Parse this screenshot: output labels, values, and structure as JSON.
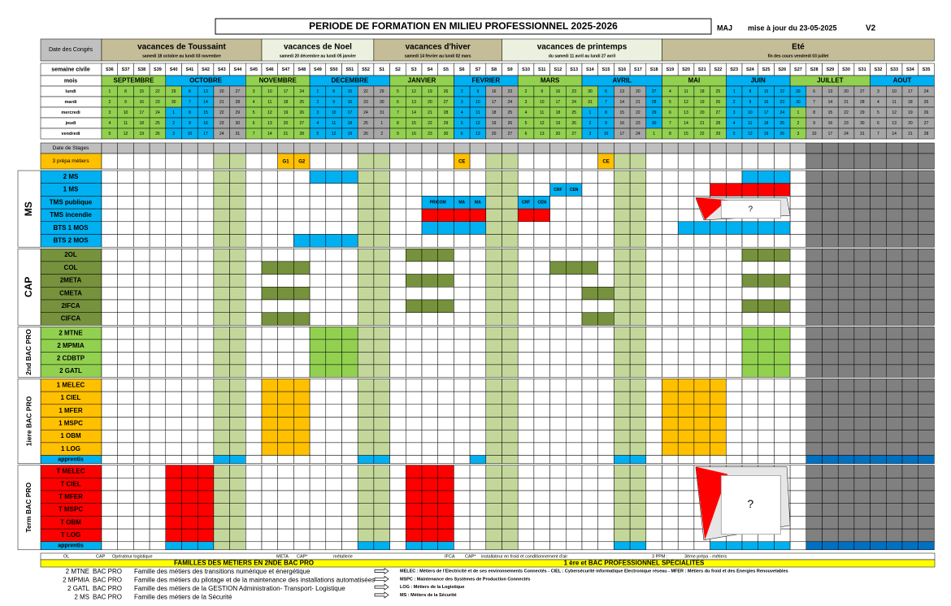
{
  "header": {
    "title": "PERIODE DE FORMATION EN MILIEU PROFESSIONNEL   2025-2026",
    "maj": "MAJ",
    "update": "mise à jour du 23-05-2025",
    "version": "V2"
  },
  "calendar": {
    "conges_label": "Date des Congés",
    "conges": [
      {
        "name": "vacances de Toussaint",
        "dates": "samedi 18 octobre au lundi 03 novembre"
      },
      {
        "name": "vacances de Noel",
        "dates": "samedi 20 décembre au lundi 05 janvier"
      },
      {
        "name": "vacances d'hiver",
        "dates": "samedi 14 février au lundi 02 mars"
      },
      {
        "name": "vacances de printemps",
        "dates": "du samedi 11 avril au lundi 27 avril"
      },
      {
        "name": "Eté",
        "dates": "fin des cours vendredi 03 juillet"
      }
    ],
    "weeks_label": "semaine civile",
    "weeks": [
      "S36",
      "S37",
      "S38",
      "S39",
      "S40",
      "S41",
      "S42",
      "S43",
      "S44",
      "S45",
      "S46",
      "S47",
      "S48",
      "S49",
      "S50",
      "S51",
      "S52",
      "S1",
      "S2",
      "S3",
      "S4",
      "S5",
      "S6",
      "S7",
      "S8",
      "S9",
      "S10",
      "S11",
      "S12",
      "S13",
      "S14",
      "S15",
      "S16",
      "S17",
      "S18",
      "S19",
      "S20",
      "S21",
      "S22",
      "S23",
      "S24",
      "S25",
      "S26",
      "S27",
      "S28",
      "S29",
      "S30",
      "S31",
      "S32",
      "S33",
      "S34",
      "S35"
    ],
    "months_label": "mois",
    "months": [
      "SEPTEMBRE",
      "OCTOBRE",
      "NOVEMBRE",
      "DECEMBRE",
      "JANVIER",
      "FEVRIER",
      "MARS",
      "AVRIL",
      "MAI",
      "JUIN",
      "JUILLET",
      "AOUT"
    ],
    "days": [
      {
        "name": "lundi",
        "dates": [
          1,
          8,
          15,
          22,
          29,
          6,
          13,
          20,
          27,
          3,
          10,
          17,
          24,
          1,
          8,
          15,
          22,
          29,
          5,
          12,
          19,
          26,
          2,
          9,
          16,
          23,
          2,
          9,
          16,
          23,
          30,
          6,
          13,
          20,
          27,
          4,
          11,
          18,
          25,
          1,
          8,
          15,
          22,
          29,
          6,
          13,
          20,
          27,
          3,
          10,
          17,
          24
        ]
      },
      {
        "name": "mardi",
        "dates": [
          2,
          9,
          16,
          23,
          30,
          7,
          14,
          21,
          28,
          4,
          11,
          18,
          25,
          2,
          9,
          16,
          23,
          30,
          6,
          13,
          20,
          27,
          3,
          10,
          17,
          24,
          3,
          10,
          17,
          24,
          31,
          7,
          14,
          21,
          28,
          5,
          12,
          19,
          26,
          2,
          9,
          16,
          23,
          30,
          7,
          14,
          21,
          28,
          4,
          11,
          18,
          25
        ]
      },
      {
        "name": "mercredi",
        "dates": [
          3,
          10,
          17,
          24,
          1,
          8,
          15,
          22,
          29,
          5,
          12,
          19,
          26,
          3,
          10,
          17,
          24,
          31,
          7,
          14,
          21,
          28,
          4,
          11,
          18,
          25,
          4,
          11,
          18,
          25,
          1,
          8,
          15,
          22,
          29,
          6,
          13,
          20,
          27,
          3,
          10,
          17,
          24,
          1,
          8,
          15,
          22,
          29,
          5,
          12,
          19,
          26
        ]
      },
      {
        "name": "jeudi",
        "dates": [
          4,
          11,
          18,
          25,
          2,
          9,
          16,
          23,
          30,
          6,
          13,
          20,
          27,
          4,
          11,
          18,
          25,
          1,
          8,
          15,
          22,
          29,
          5,
          12,
          19,
          26,
          5,
          12,
          19,
          26,
          2,
          9,
          16,
          23,
          30,
          7,
          14,
          21,
          28,
          4,
          11,
          18,
          25,
          2,
          9,
          16,
          23,
          30,
          6,
          13,
          20,
          27
        ]
      },
      {
        "name": "vendredi",
        "dates": [
          5,
          12,
          19,
          26,
          3,
          10,
          17,
          24,
          31,
          7,
          14,
          21,
          28,
          5,
          12,
          19,
          26,
          2,
          9,
          16,
          23,
          30,
          6,
          13,
          20,
          27,
          6,
          13,
          20,
          27,
          3,
          10,
          17,
          24,
          1,
          8,
          15,
          22,
          29,
          5,
          12,
          19,
          26,
          3,
          10,
          17,
          24,
          31,
          7,
          14,
          21,
          28
        ]
      }
    ]
  },
  "planning": {
    "stages_label": "Date de Stages",
    "prepa": {
      "name": "3 prépa métiers",
      "labels": [
        "G1",
        "G2",
        "CE",
        "CE"
      ]
    },
    "groups": [
      {
        "name": "MS",
        "rows": [
          {
            "name": "2 MS"
          },
          {
            "name": "1 MS",
            "labels": [
              "CRF",
              "CEN"
            ]
          },
          {
            "name": "TMS publique",
            "labels": [
              "PRICOM",
              "MA",
              "MA",
              "CRF",
              "CEN",
              "?"
            ]
          },
          {
            "name": "TMS incendie"
          },
          {
            "name": "BTS 1 MOS"
          },
          {
            "name": "BTS 2 MOS"
          }
        ]
      },
      {
        "name": "CAP",
        "rows": [
          {
            "name": "2OL"
          },
          {
            "name": "COL"
          },
          {
            "name": "2META"
          },
          {
            "name": "CMETA"
          },
          {
            "name": "2IFCA"
          },
          {
            "name": "CIFCA"
          }
        ]
      },
      {
        "name": "2nd BAC PRO",
        "rows": [
          {
            "name": "2 MTNE"
          },
          {
            "name": "2 MPMIA"
          },
          {
            "name": "2 CDBTP"
          },
          {
            "name": "2 GATL"
          }
        ]
      },
      {
        "name": "1iere BAC PRO",
        "rows": [
          {
            "name": "1 MELEC"
          },
          {
            "name": "1 CIEL"
          },
          {
            "name": "1 MFER"
          },
          {
            "name": "1 MSPC"
          },
          {
            "name": "1 OBM"
          },
          {
            "name": "1 LOG"
          },
          {
            "name": "apprentis"
          }
        ]
      },
      {
        "name": "Term BAC PRO",
        "rows": [
          {
            "name": "T MELEC",
            "labels": [
              "?"
            ]
          },
          {
            "name": "T CIEL"
          },
          {
            "name": "T MFER"
          },
          {
            "name": "T MSPC"
          },
          {
            "name": "T OBM"
          },
          {
            "name": "T LOG"
          },
          {
            "name": "apprentis"
          }
        ]
      }
    ]
  },
  "footer": {
    "legend": [
      "OL",
      "CAP",
      "Opérateur logistique",
      "META",
      "CAP*",
      "métallerie",
      "IFCA",
      "CAP*",
      "installateur en froid et conditionnement d'air",
      "3 PPM :",
      "3ème prépa - métiers"
    ],
    "bar_left": "FAMILLES DES METIERS  EN 2NDE BAC PRO",
    "bar_right": "1 ère  et  BAC PROFESSIONNEL   SPECIALITES",
    "families": [
      {
        "code": "2 MTNE",
        "type": "BAC PRO",
        "desc": "Famille des métiers des transitions numérique et énergétique"
      },
      {
        "code": "2 MPMIA",
        "type": "BAC PRO",
        "desc": "Famille des métiers du pilotage et de la maintenance des installations automatisées"
      },
      {
        "code": "2 GATL",
        "type": "BAC PRO",
        "desc": "Famille des métiers de la GESTION Administration- Transport- Logistique"
      },
      {
        "code": "2 MS",
        "type": "BAC PRO",
        "desc": "Famille des métiers de la Sécurité"
      }
    ],
    "specialties": [
      "MELEC :  Métiers de l'Electricité et de ses environnements Connectés   -  CIEL : Cybersécurité informatique Electronique réseau   -  MFER : Métiers du froid et des Energies Renouvelables",
      "MSPC :  Maintenance des Systèmes de Production Connectés",
      "LOG : Métiers de la Logistique",
      "MS :   Métiers de la Sécurité"
    ]
  }
}
